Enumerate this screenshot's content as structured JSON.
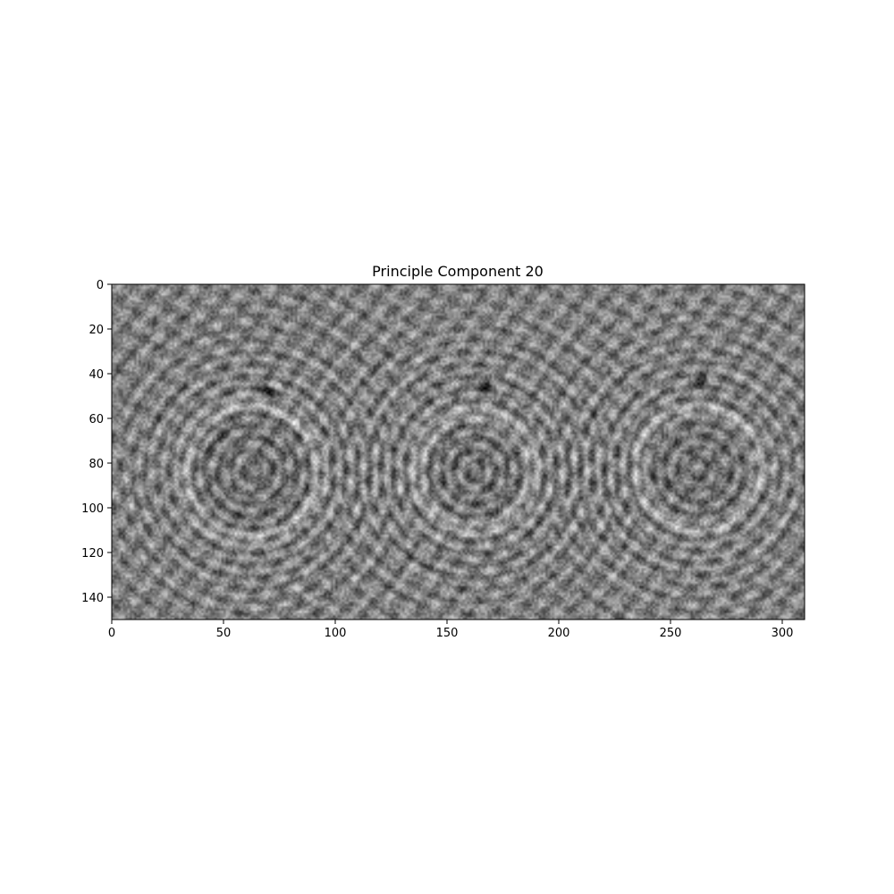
{
  "chart_data": {
    "type": "heatmap",
    "title": "Principle Component 20",
    "xlabel": "",
    "ylabel": "",
    "xlim": [
      0,
      310
    ],
    "ylim": [
      150,
      0
    ],
    "image_shape": [
      150,
      310
    ],
    "colormap": "gray",
    "grid": false,
    "x_ticks": [
      0,
      50,
      100,
      150,
      200,
      250,
      300
    ],
    "y_ticks": [
      0,
      20,
      40,
      60,
      80,
      100,
      120,
      140
    ],
    "features": [
      {
        "name": "ring-left",
        "center": [
          62,
          83
        ],
        "radius": 30
      },
      {
        "name": "ring-middle",
        "center": [
          162,
          83
        ],
        "radius": 26
      },
      {
        "name": "ring-right",
        "center": [
          262,
          82
        ],
        "radius": 27
      }
    ],
    "dark_spots": [
      {
        "center": [
          70,
          47
        ]
      },
      {
        "center": [
          167,
          44
        ]
      },
      {
        "center": [
          264,
          42
        ]
      }
    ]
  }
}
